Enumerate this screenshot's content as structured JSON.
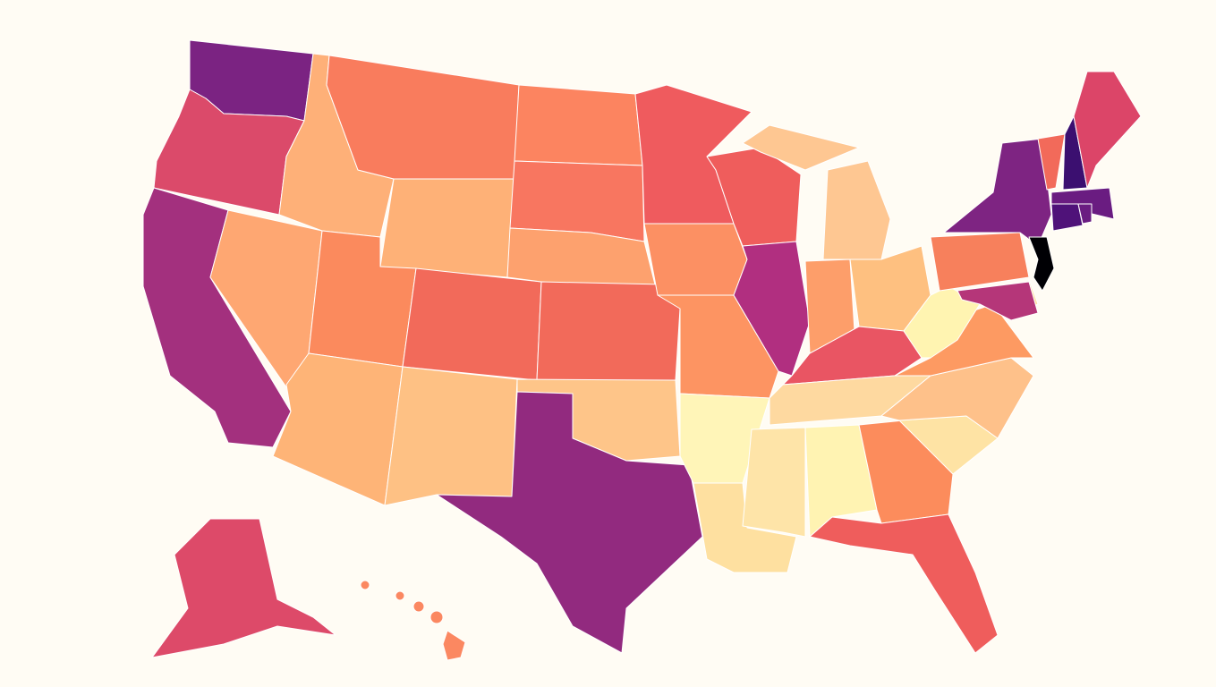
{
  "map": {
    "fills": [
      "#7b2382",
      "#db4a6a",
      "#a3307e",
      "#fea772",
      "#feb078",
      "#f97c5d",
      "#feb177",
      "#fb8a5d",
      "#f26a5a",
      "#feb477",
      "#fec184",
      "#fc8460",
      "#f87660",
      "#fda16e",
      "#f26a5a",
      "#fec589",
      "#922a7f",
      "#ef5b5e",
      "#fc9063",
      "#fd9462",
      "#fff5b8",
      "#fee0a0",
      "#ef5d5c",
      "#b12f80",
      "#fec792",
      "#fec792",
      "#fd9e6a",
      "#fec080",
      "#e95563",
      "#fed9a0",
      "#fee4a8",
      "#fff3b2",
      "#fc8c5c",
      "#ef5d5c",
      "#fee3a4",
      "#fec18a",
      "#fd9a62",
      "#fff4b1",
      "#f7805c",
      "#7e2482",
      "#f26a5a",
      "#3b0f70",
      "#dc4568",
      "#6a1c81",
      "#4f1279",
      "#6a1c81",
      "#000004",
      "#fee2a0",
      "#b53679",
      "#dd4a69",
      "#fb8861"
    ]
  }
}
